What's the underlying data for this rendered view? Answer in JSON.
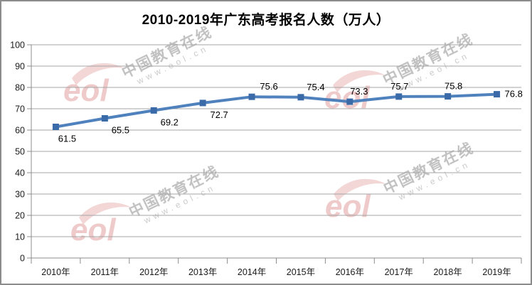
{
  "page": {
    "background": "#ffffff",
    "border_color": "#8c8c8c"
  },
  "chart_data": {
    "type": "line",
    "title": "2010-2019年广东高考报名人数（万人）",
    "categories": [
      "2010年",
      "2011年",
      "2012年",
      "2013年",
      "2014年",
      "2015年",
      "2016年",
      "2017年",
      "2018年",
      "2019年"
    ],
    "values": [
      61.5,
      65.5,
      69.2,
      72.7,
      75.6,
      75.4,
      73.3,
      75.7,
      75.8,
      76.8
    ],
    "ylim": [
      0,
      100
    ],
    "yticks": [
      0,
      10,
      20,
      30,
      40,
      50,
      60,
      70,
      80,
      90,
      100
    ],
    "grid": "horizontal",
    "legend": "none",
    "xlabel": "",
    "ylabel": "",
    "line_color": "#4f81bd",
    "marker_color": "#3a6aa8",
    "axis_color": "#8c8c8c",
    "gridline_color": "#a6a6a6",
    "tick_label_color": "#1a1a1a",
    "data_label_color": "#000000",
    "label_placement": [
      "below",
      "below",
      "below",
      "below",
      "above",
      "above",
      "above",
      "above",
      "above",
      "right"
    ],
    "label_dx": [
      16,
      22,
      22,
      23,
      24,
      21,
      13,
      1,
      8,
      11
    ]
  },
  "watermark": {
    "brand": "中国教育在线",
    "url": "www.eol.cn",
    "logo": "eol",
    "logo_color": "#d46a6a"
  }
}
